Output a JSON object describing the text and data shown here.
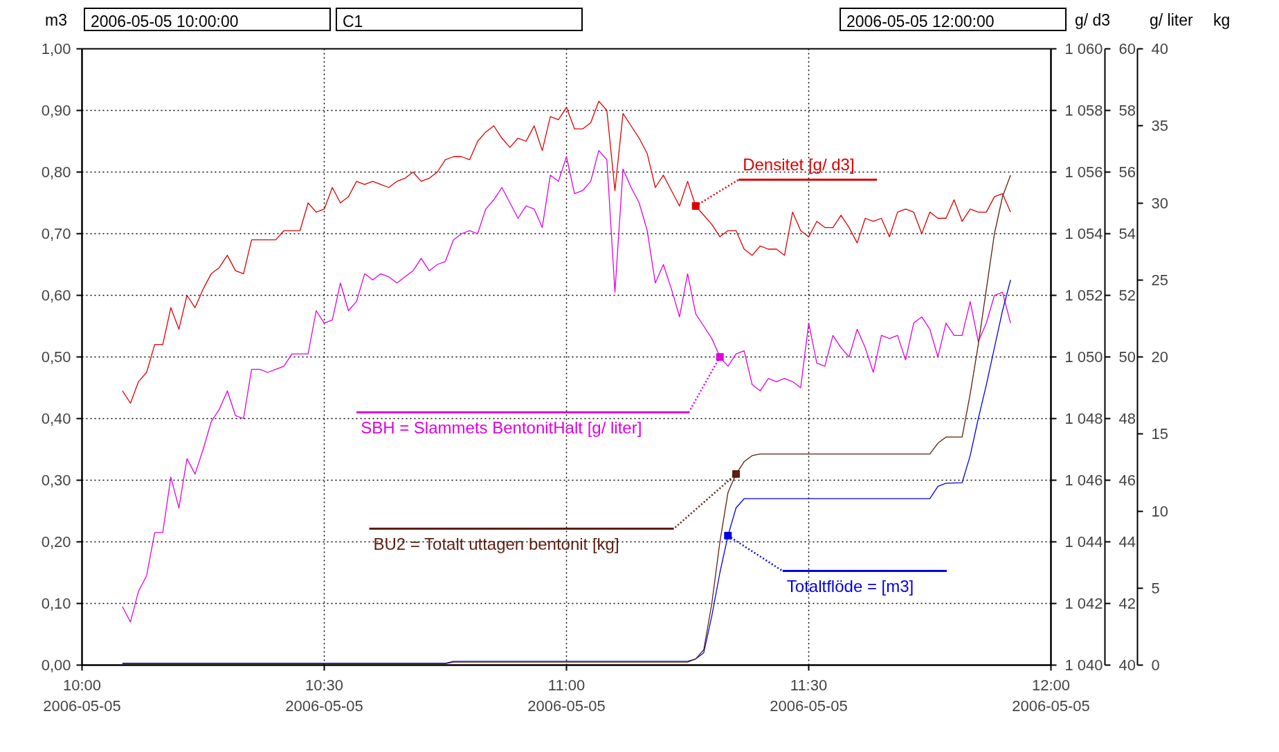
{
  "chart_data": [
    {
      "type": "line",
      "ylabel": "m3",
      "y2label": "g/ d3",
      "y3label": "g/ liter",
      "annotations": [
        "2006-05-05 10:00:00",
        "C1",
        "2006-05-05 12:00:00"
      ],
      "grid": true,
      "xlim": [
        "2006-05-05T10:00",
        "2006-05-05T12:00"
      ],
      "xticks": [
        {
          "value": "2006-05-05T10:00",
          "label": "10:00\n2006-05-05"
        },
        {
          "value": "2006-05-05T10:30",
          "label": "10:30\n2006-05-05"
        },
        {
          "value": "2006-05-05T11:00",
          "label": "11:00\n2006-05-05"
        },
        {
          "value": "2006-05-05T11:30",
          "label": "11:30\n2006-05-05"
        },
        {
          "value": "2006-05-05T12:00",
          "label": "12:00\n2006-05-05"
        }
      ],
      "ylim": [
        0,
        1
      ],
      "yticks": [
        {
          "value": 0,
          "label": "0,00"
        },
        {
          "value": 0.1,
          "label": "0,10"
        },
        {
          "value": 0.2,
          "label": "0,20"
        },
        {
          "value": 0.3,
          "label": "0,30"
        },
        {
          "value": 0.4,
          "label": "0,40"
        },
        {
          "value": 0.5,
          "label": "0,50"
        },
        {
          "value": 0.6,
          "label": "0,60"
        },
        {
          "value": 0.7,
          "label": "0,70"
        },
        {
          "value": 0.8,
          "label": "0,80"
        },
        {
          "value": 0.9,
          "label": "0,90"
        },
        {
          "value": 1,
          "label": "1,00"
        }
      ],
      "y2lim": [
        1040,
        1060
      ],
      "y2ticks": [
        {
          "value": 1040,
          "label": "1 040"
        },
        {
          "value": 1042,
          "label": "1 042"
        },
        {
          "value": 1044,
          "label": "1 044"
        },
        {
          "value": 1046,
          "label": "1 046"
        },
        {
          "value": 1048,
          "label": "1 048"
        },
        {
          "value": 1050,
          "label": "1 050"
        },
        {
          "value": 1052,
          "label": "1 052"
        },
        {
          "value": 1054,
          "label": "1 054"
        },
        {
          "value": 1056,
          "label": "1 056"
        },
        {
          "value": 1058,
          "label": "1 058"
        },
        {
          "value": 1060,
          "label": "1 060"
        }
      ],
      "y3lim": [
        40,
        60
      ],
      "y3ticks": [
        40,
        42,
        44,
        46,
        48,
        50,
        52,
        54,
        56,
        58,
        60
      ],
      "x": [
        "2006-05-05T10:05",
        "2006-05-05T10:06",
        "2006-05-05T10:07",
        "2006-05-05T10:08",
        "2006-05-05T10:09",
        "2006-05-05T10:10",
        "2006-05-05T10:11",
        "2006-05-05T10:12",
        "2006-05-05T10:13",
        "2006-05-05T10:14",
        "2006-05-05T10:15",
        "2006-05-05T10:16",
        "2006-05-05T10:17",
        "2006-05-05T10:18",
        "2006-05-05T10:19",
        "2006-05-05T10:20",
        "2006-05-05T10:21",
        "2006-05-05T10:22",
        "2006-05-05T10:23",
        "2006-05-05T10:24",
        "2006-05-05T10:25",
        "2006-05-05T10:26",
        "2006-05-05T10:27",
        "2006-05-05T10:28",
        "2006-05-05T10:29",
        "2006-05-05T10:30",
        "2006-05-05T10:31",
        "2006-05-05T10:32",
        "2006-05-05T10:33",
        "2006-05-05T10:34",
        "2006-05-05T10:35",
        "2006-05-05T10:36",
        "2006-05-05T10:37",
        "2006-05-05T10:38",
        "2006-05-05T10:39",
        "2006-05-05T10:40",
        "2006-05-05T10:41",
        "2006-05-05T10:42",
        "2006-05-05T10:43",
        "2006-05-05T10:44",
        "2006-05-05T10:45",
        "2006-05-05T10:46",
        "2006-05-05T10:47",
        "2006-05-05T10:48",
        "2006-05-05T10:49",
        "2006-05-05T10:50",
        "2006-05-05T10:51",
        "2006-05-05T10:52",
        "2006-05-05T10:53",
        "2006-05-05T10:54",
        "2006-05-05T10:55",
        "2006-05-05T10:56",
        "2006-05-05T10:57",
        "2006-05-05T10:58",
        "2006-05-05T10:59",
        "2006-05-05T11:00",
        "2006-05-05T11:01",
        "2006-05-05T11:02",
        "2006-05-05T11:03",
        "2006-05-05T11:04",
        "2006-05-05T11:05",
        "2006-05-05T11:06",
        "2006-05-05T11:07",
        "2006-05-05T11:08",
        "2006-05-05T11:09",
        "2006-05-05T11:10",
        "2006-05-05T11:11",
        "2006-05-05T11:12",
        "2006-05-05T11:13",
        "2006-05-05T11:14",
        "2006-05-05T11:15",
        "2006-05-05T11:16",
        "2006-05-05T11:17",
        "2006-05-05T11:18",
        "2006-05-05T11:19",
        "2006-05-05T11:20",
        "2006-05-05T11:21",
        "2006-05-05T11:22",
        "2006-05-05T11:23",
        "2006-05-05T11:24",
        "2006-05-05T11:25",
        "2006-05-05T11:26",
        "2006-05-05T11:27",
        "2006-05-05T11:28",
        "2006-05-05T11:29",
        "2006-05-05T11:30",
        "2006-05-05T11:31",
        "2006-05-05T11:32",
        "2006-05-05T11:33",
        "2006-05-05T11:34",
        "2006-05-05T11:35",
        "2006-05-05T11:36",
        "2006-05-05T11:37",
        "2006-05-05T11:38",
        "2006-05-05T11:39",
        "2006-05-05T11:40",
        "2006-05-05T11:41",
        "2006-05-05T11:42",
        "2006-05-05T11:43",
        "2006-05-05T11:44",
        "2006-05-05T11:45",
        "2006-05-05T11:46",
        "2006-05-05T11:47",
        "2006-05-05T11:48",
        "2006-05-05T11:49",
        "2006-05-05T11:50",
        "2006-05-05T11:51",
        "2006-05-05T11:52",
        "2006-05-05T11:53",
        "2006-05-05T11:54",
        "2006-05-05T11:55"
      ],
      "series": [
        {
          "name": "Densitet [g/ d3]",
          "color": "#dc0000",
          "axis": "y2",
          "values": [
            1048.9,
            1048.5,
            1049.2,
            1049.5,
            1050.4,
            1050.4,
            1051.6,
            1050.9,
            1052.0,
            1051.6,
            1052.2,
            1052.7,
            1052.9,
            1053.3,
            1052.8,
            1052.7,
            1053.8,
            1053.8,
            1053.8,
            1053.8,
            1054.1,
            1054.1,
            1054.1,
            1055.0,
            1054.7,
            1054.8,
            1055.5,
            1055.0,
            1055.2,
            1055.7,
            1055.6,
            1055.7,
            1055.6,
            1055.5,
            1055.7,
            1055.8,
            1056.0,
            1055.7,
            1055.8,
            1056.0,
            1056.4,
            1056.5,
            1056.5,
            1056.4,
            1057.0,
            1057.3,
            1057.5,
            1057.1,
            1056.8,
            1057.1,
            1057.0,
            1057.5,
            1056.7,
            1057.8,
            1057.7,
            1058.1,
            1057.4,
            1057.4,
            1057.6,
            1058.3,
            1058.0,
            1055.4,
            1057.9,
            1057.5,
            1057.1,
            1056.6,
            1055.5,
            1055.9,
            1055.4,
            1054.9,
            1055.7,
            1054.9,
            1054.6,
            1054.3,
            1053.9,
            1054.1,
            1054.1,
            1053.5,
            1053.3,
            1053.6,
            1053.5,
            1053.5,
            1053.3,
            1054.7,
            1054.1,
            1053.9,
            1054.4,
            1054.2,
            1054.2,
            1054.6,
            1054.2,
            1053.7,
            1054.5,
            1054.4,
            1054.5,
            1053.9,
            1054.7,
            1054.8,
            1054.7,
            1054.0,
            1054.7,
            1054.5,
            1054.5,
            1055.1,
            1054.4,
            1054.8,
            1054.7,
            1054.7,
            1055.2,
            1055.3,
            1054.7
          ]
        },
        {
          "name": "SBH = Slammets BentonitHalt [g/ liter]",
          "color": "#e000e0",
          "axis": "y3",
          "values": [
            41.9,
            41.4,
            42.4,
            42.9,
            44.3,
            44.3,
            46.1,
            45.1,
            46.7,
            46.2,
            47.0,
            47.9,
            48.3,
            48.9,
            48.1,
            48.0,
            49.6,
            49.6,
            49.5,
            49.6,
            49.7,
            50.1,
            50.1,
            50.1,
            51.5,
            51.1,
            51.2,
            52.4,
            51.5,
            51.8,
            52.7,
            52.5,
            52.7,
            52.6,
            52.4,
            52.6,
            52.8,
            53.2,
            52.8,
            53.0,
            53.1,
            53.8,
            54.0,
            54.1,
            54.0,
            54.8,
            55.1,
            55.5,
            55.0,
            54.5,
            54.9,
            54.8,
            54.2,
            55.9,
            55.7,
            56.5,
            55.3,
            55.4,
            55.7,
            56.7,
            56.4,
            52.1,
            56.1,
            55.5,
            55.0,
            54.1,
            52.4,
            53.0,
            52.2,
            51.3,
            52.7,
            51.4,
            51.0,
            50.6,
            50.0,
            49.7,
            50.1,
            50.2,
            49.1,
            48.9,
            49.3,
            49.2,
            49.3,
            49.2,
            49.0,
            51.1,
            49.8,
            49.7,
            50.7,
            50.3,
            50.0,
            50.9,
            50.3,
            49.5,
            50.7,
            50.6,
            50.7,
            49.9,
            51.1,
            51.3,
            50.9,
            50.0,
            51.1,
            50.7,
            50.7,
            51.8,
            50.5,
            51.1,
            52.0,
            52.1,
            51.1
          ]
        },
        {
          "name": "Totaltflöde =  [m3]",
          "color": "#0000e6",
          "x": [
            "2006-05-05T10:05",
            "2006-05-05T10:45",
            "2006-05-05T10:46",
            "2006-05-05T11:15",
            "2006-05-05T11:16",
            "2006-05-05T11:17",
            "2006-05-05T11:18",
            "2006-05-05T11:19",
            "2006-05-05T11:20",
            "2006-05-05T11:21",
            "2006-05-05T11:22",
            "2006-05-05T11:45",
            "2006-05-05T11:46",
            "2006-05-05T11:47",
            "2006-05-05T11:49",
            "2006-05-05T11:50",
            "2006-05-05T11:51",
            "2006-05-05T11:52",
            "2006-05-05T11:53",
            "2006-05-05T11:54",
            "2006-05-05T11:55"
          ],
          "values": [
            0.003,
            0.003,
            0.006,
            0.006,
            0.01,
            0.02,
            0.08,
            0.15,
            0.21,
            0.255,
            0.27,
            0.27,
            0.29,
            0.295,
            0.296,
            0.34,
            0.4,
            0.455,
            0.515,
            0.575,
            0.625
          ]
        }
      ]
    },
    {
      "type": "line",
      "ylabel": "kg",
      "xlim": [
        "2006-05-05T10:00",
        "2006-05-05T12:00"
      ],
      "ylim": [
        0,
        40
      ],
      "yticks": [
        0,
        5,
        10,
        15,
        20,
        25,
        30,
        35,
        40
      ],
      "tick_labels": "y",
      "series": [
        {
          "name": "BU2 = Totalt uttagen bentonit [kg]",
          "color": "#5c1e0e",
          "x": [
            "2006-05-05T10:05",
            "2006-05-05T10:45",
            "2006-05-05T10:46",
            "2006-05-05T11:15",
            "2006-05-05T11:16",
            "2006-05-05T11:17",
            "2006-05-05T11:18",
            "2006-05-05T11:19",
            "2006-05-05T11:20",
            "2006-05-05T11:21",
            "2006-05-05T11:22",
            "2006-05-05T11:23",
            "2006-05-05T11:24",
            "2006-05-05T11:45",
            "2006-05-05T11:46",
            "2006-05-05T11:47",
            "2006-05-05T11:49",
            "2006-05-05T11:50",
            "2006-05-05T11:51",
            "2006-05-05T11:52",
            "2006-05-05T11:53",
            "2006-05-05T11:54",
            "2006-05-05T11:55"
          ],
          "values": [
            0.1,
            0.1,
            0.2,
            0.2,
            0.4,
            1.0,
            4.0,
            8.0,
            11.2,
            12.4,
            13.2,
            13.6,
            13.7,
            13.7,
            14.4,
            14.8,
            14.8,
            17.6,
            20.8,
            24.4,
            28.0,
            30.4,
            31.8
          ]
        }
      ]
    }
  ]
}
